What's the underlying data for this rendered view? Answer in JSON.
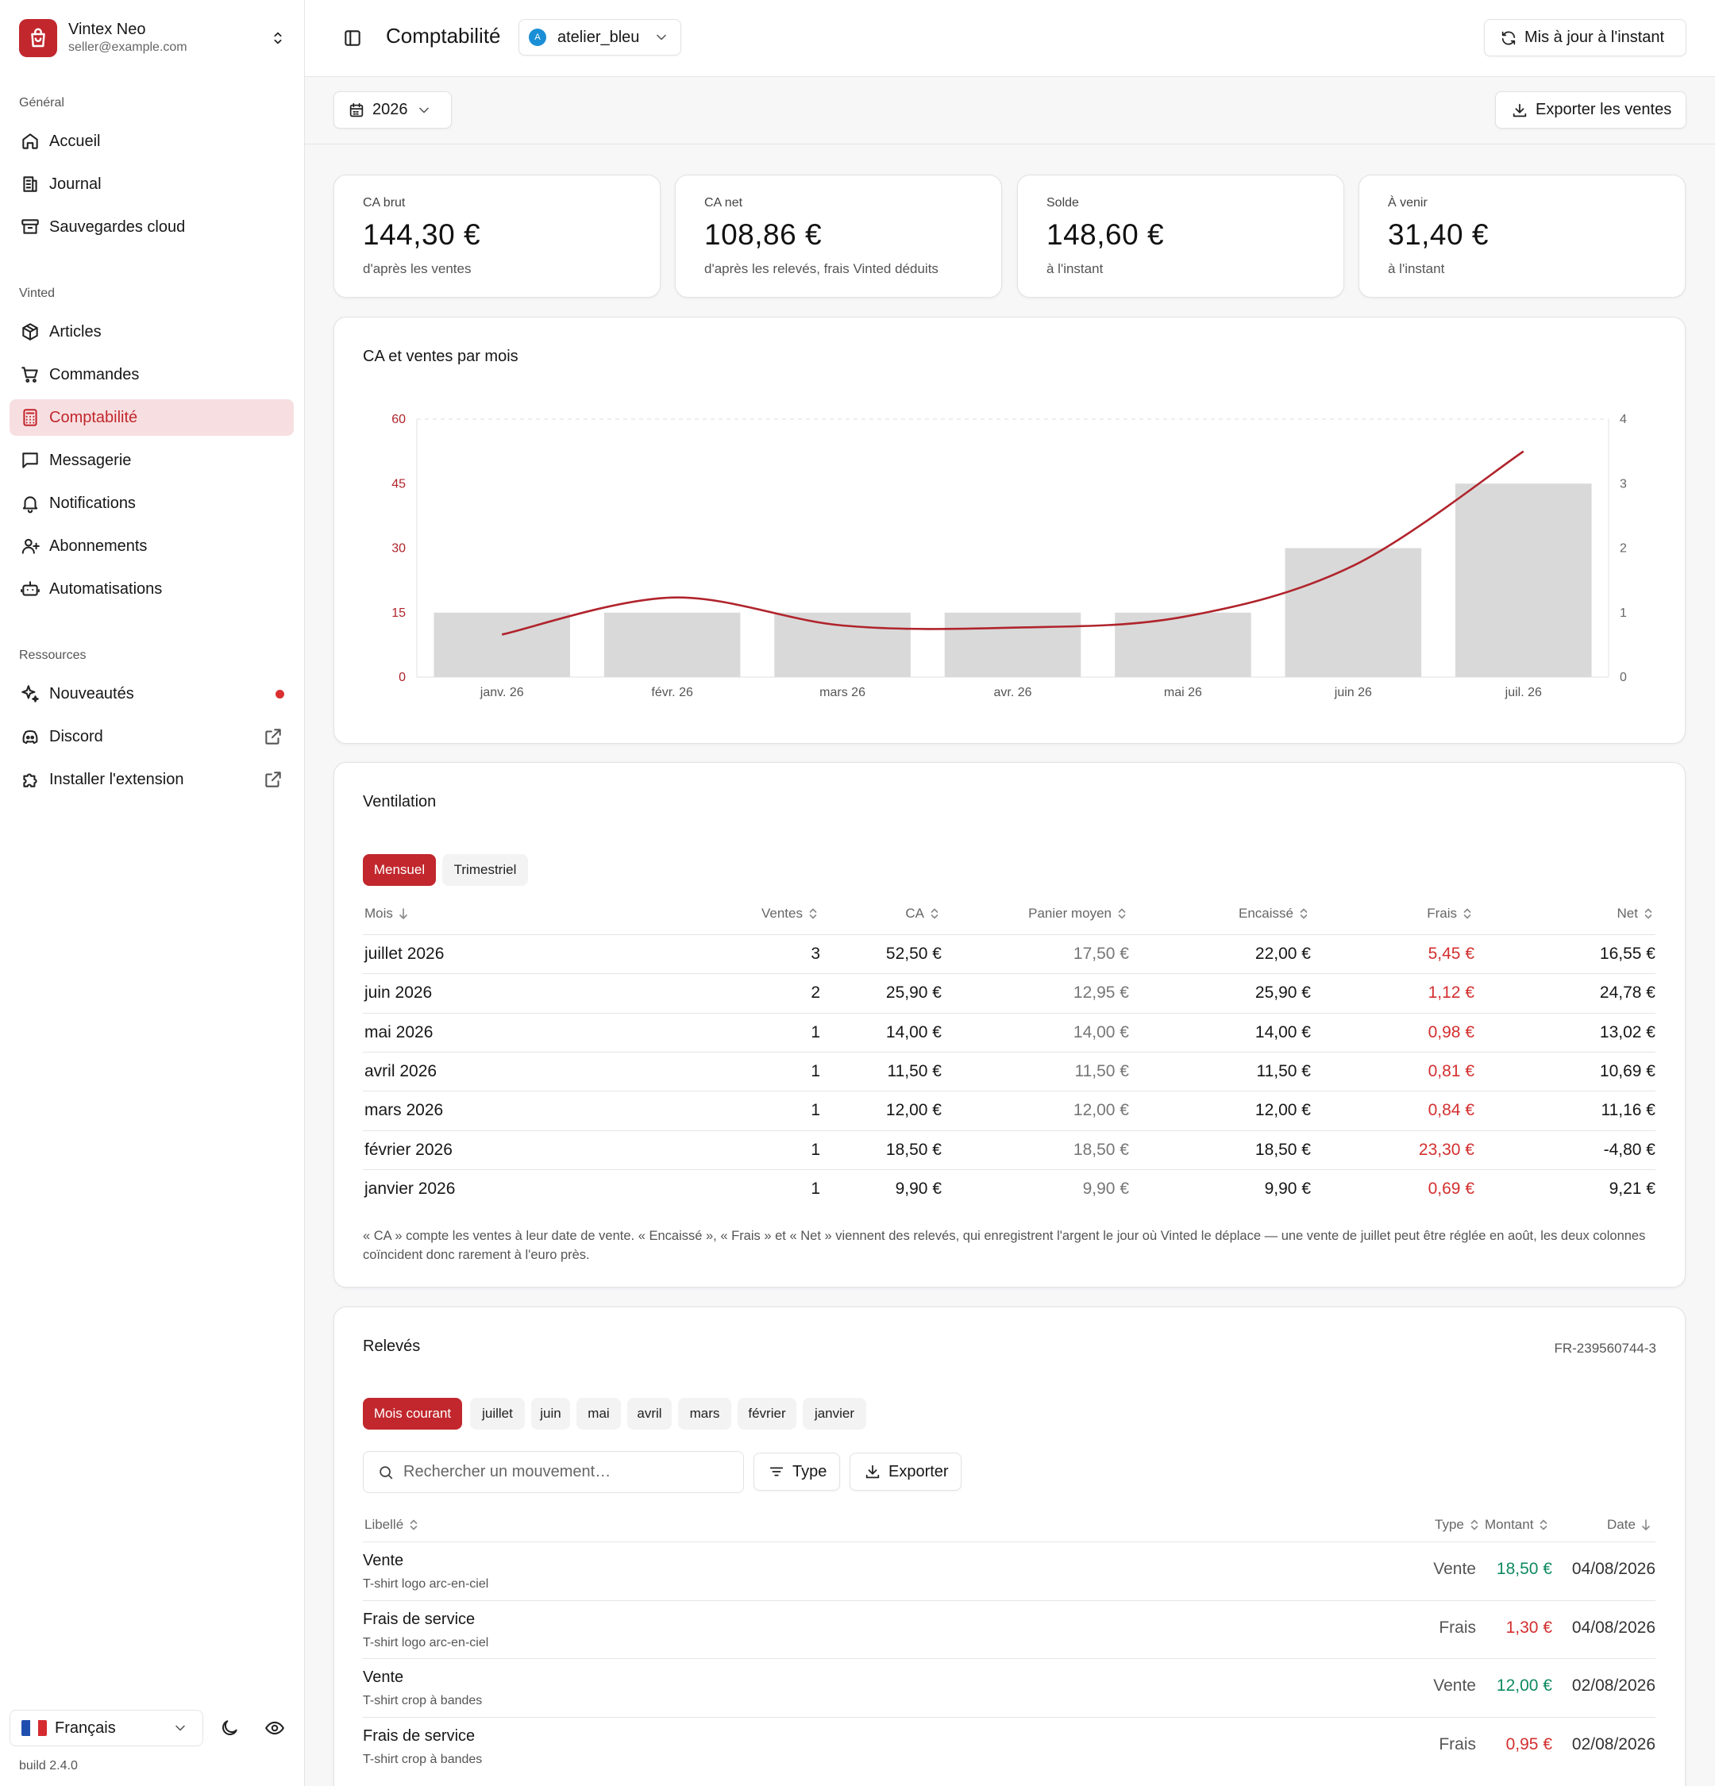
{
  "account": {
    "name": "Vintex Neo",
    "email": "seller@example.com"
  },
  "sidebar": {
    "sections": [
      {
        "label": "Général",
        "items": [
          {
            "label": "Accueil",
            "icon": "home-icon"
          },
          {
            "label": "Journal",
            "icon": "journal-icon"
          },
          {
            "label": "Sauvegardes cloud",
            "icon": "archive-icon"
          }
        ]
      },
      {
        "label": "Vinted",
        "items": [
          {
            "label": "Articles",
            "icon": "package-icon"
          },
          {
            "label": "Commandes",
            "icon": "cart-icon"
          },
          {
            "label": "Comptabilité",
            "icon": "calculator-icon",
            "active": true
          },
          {
            "label": "Messagerie",
            "icon": "message-icon"
          },
          {
            "label": "Notifications",
            "icon": "bell-icon"
          },
          {
            "label": "Abonnements",
            "icon": "user-plus-icon"
          },
          {
            "label": "Automatisations",
            "icon": "bot-icon"
          }
        ]
      },
      {
        "label": "Ressources",
        "items": [
          {
            "label": "Nouveautés",
            "icon": "sparkles-icon",
            "badge": "unread-dot"
          },
          {
            "label": "Discord",
            "icon": "discord-icon",
            "external": true
          },
          {
            "label": "Installer l'extension",
            "icon": "puzzle-icon",
            "external": true
          }
        ]
      }
    ],
    "language": "Français",
    "build": "build 2.4.0"
  },
  "header": {
    "title": "Comptabilité",
    "store": "atelier_bleu",
    "store_avatar": "A",
    "refresh": "Mis à jour à l'instant"
  },
  "toolbar": {
    "year": "2026",
    "export": "Exporter les ventes"
  },
  "kpis": [
    {
      "label": "CA brut",
      "value": "144,30 €",
      "sub": "d'après les ventes"
    },
    {
      "label": "CA net",
      "value": "108,86 €",
      "sub": "d'après les relevés, frais Vinted déduits"
    },
    {
      "label": "Solde",
      "value": "148,60 €",
      "sub": "à l'instant"
    },
    {
      "label": "À venir",
      "value": "31,40 €",
      "sub": "à l'instant"
    }
  ],
  "chart_title": "CA et ventes par mois",
  "chart_data": {
    "type": "bar",
    "categories": [
      "janv. 26",
      "févr. 26",
      "mars 26",
      "avr. 26",
      "mai 26",
      "juin 26",
      "juil. 26"
    ],
    "series": [
      {
        "type": "bar",
        "axis": "right",
        "values": [
          1,
          1,
          1,
          1,
          1,
          2,
          3
        ],
        "color": "#d9d9d9"
      },
      {
        "type": "line",
        "axis": "left",
        "values": [
          9.9,
          18.5,
          12.0,
          11.5,
          14.0,
          25.9,
          52.5
        ],
        "color": "#b0242c"
      }
    ],
    "y_left": {
      "min": 0,
      "max": 60,
      "ticks": [
        0,
        15,
        30,
        45,
        60
      ],
      "color": "#b0242c"
    },
    "y_right": {
      "min": 0,
      "max": 4,
      "ticks": [
        0,
        1,
        2,
        3,
        4
      ]
    },
    "grid": "top-dashed"
  },
  "ventilation": {
    "title": "Ventilation",
    "tabs": [
      "Mensuel",
      "Trimestriel"
    ],
    "active_tab": 0,
    "columns": [
      "Mois",
      "Ventes",
      "CA",
      "Panier moyen",
      "Encaissé",
      "Frais",
      "Net"
    ],
    "rows": [
      [
        "juillet 2026",
        "3",
        "52,50 €",
        "17,50 €",
        "22,00 €",
        "5,45 €",
        "16,55 €"
      ],
      [
        "juin 2026",
        "2",
        "25,90 €",
        "12,95 €",
        "25,90 €",
        "1,12 €",
        "24,78 €"
      ],
      [
        "mai 2026",
        "1",
        "14,00 €",
        "14,00 €",
        "14,00 €",
        "0,98 €",
        "13,02 €"
      ],
      [
        "avril 2026",
        "1",
        "11,50 €",
        "11,50 €",
        "11,50 €",
        "0,81 €",
        "10,69 €"
      ],
      [
        "mars 2026",
        "1",
        "12,00 €",
        "12,00 €",
        "12,00 €",
        "0,84 €",
        "11,16 €"
      ],
      [
        "février 2026",
        "1",
        "18,50 €",
        "18,50 €",
        "18,50 €",
        "23,30 €",
        "-4,80 €"
      ],
      [
        "janvier 2026",
        "1",
        "9,90 €",
        "9,90 €",
        "9,90 €",
        "0,69 €",
        "9,21 €"
      ]
    ],
    "note": "« CA » compte les ventes à leur date de vente. « Encaissé », « Frais » et « Net » viennent des relevés, qui enregistrent l'argent le jour où Vinted le déplace — une vente de juillet peut être réglée en août, les deux colonnes coïncident donc rarement à l'euro près."
  },
  "releves": {
    "title": "Relevés",
    "ref": "FR-239560744-3",
    "periods": [
      "Mois courant",
      "juillet",
      "juin",
      "mai",
      "avril",
      "mars",
      "février",
      "janvier"
    ],
    "active_period": 0,
    "search_placeholder": "Rechercher un mouvement…",
    "type_filter": "Type",
    "export": "Exporter",
    "columns": [
      "Libellé",
      "Type",
      "Montant",
      "Date"
    ],
    "rows": [
      {
        "label": "Vente",
        "item": "T-shirt logo arc-en-ciel",
        "type": "Vente",
        "amount": "18,50 €",
        "date": "04/08/2026",
        "positive": true
      },
      {
        "label": "Frais de service",
        "item": "T-shirt logo arc-en-ciel",
        "type": "Frais",
        "amount": "1,30 €",
        "date": "04/08/2026",
        "positive": false
      },
      {
        "label": "Vente",
        "item": "T-shirt crop à bandes",
        "type": "Vente",
        "amount": "12,00 €",
        "date": "02/08/2026",
        "positive": true
      },
      {
        "label": "Frais de service",
        "item": "T-shirt crop à bandes",
        "type": "Frais",
        "amount": "0,95 €",
        "date": "02/08/2026",
        "positive": false
      }
    ]
  },
  "colors": {
    "accent": "#c1272d",
    "positive": "#0f8a5f",
    "negative": "#d32f2f",
    "bar": "#d9d9d9"
  }
}
